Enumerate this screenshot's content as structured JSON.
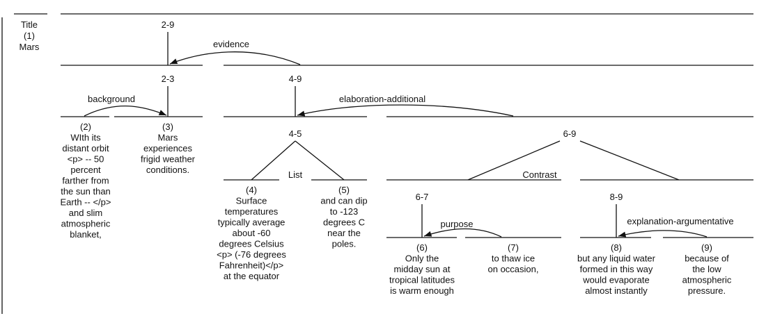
{
  "title": {
    "label": "Title",
    "number": "(1)",
    "text": "Mars"
  },
  "spans": {
    "s2_9": "2-9",
    "s2_3": "2-3",
    "s4_9": "4-9",
    "s4_5": "4-5",
    "s6_9": "6-9",
    "s6_7": "6-7",
    "s8_9": "8-9"
  },
  "relations": {
    "evidence": "evidence",
    "background": "background",
    "elaboration": "elaboration-additional",
    "list": "List",
    "contrast": "Contrast",
    "purpose": "purpose",
    "explanation": "explanation-argumentative"
  },
  "edus": [
    {
      "id": "2",
      "lines": [
        "(2)",
        "WIth its",
        "distant orbit",
        "<p> -- 50",
        "percent",
        "farther from",
        "the sun than",
        "Earth -- </p>",
        "and slim",
        "atmospheric",
        "blanket,"
      ]
    },
    {
      "id": "3",
      "lines": [
        "(3)",
        "Mars",
        "experiences",
        "frigid weather",
        "conditions."
      ]
    },
    {
      "id": "4",
      "lines": [
        "(4)",
        "Surface",
        "temperatures",
        "typically average",
        "about -60",
        "degrees Celsius",
        "<p> (-76 degrees",
        "Fahrenheit)</p>",
        "at the equator"
      ]
    },
    {
      "id": "5",
      "lines": [
        "(5)",
        "and can dip",
        "to -123",
        "degrees C",
        "near the",
        "poles."
      ]
    },
    {
      "id": "6",
      "lines": [
        "(6)",
        "Only the",
        "midday sun at",
        "tropical latitudes",
        "is warm enough"
      ]
    },
    {
      "id": "7",
      "lines": [
        "(7)",
        "to thaw ice",
        "on occasion,"
      ]
    },
    {
      "id": "8",
      "lines": [
        "(8)",
        "but any liquid water",
        "formed in this way",
        "would evaporate",
        "almost instantly"
      ]
    },
    {
      "id": "9",
      "lines": [
        "(9)",
        "because of",
        "the low",
        "atmospheric",
        "pressure."
      ]
    }
  ]
}
